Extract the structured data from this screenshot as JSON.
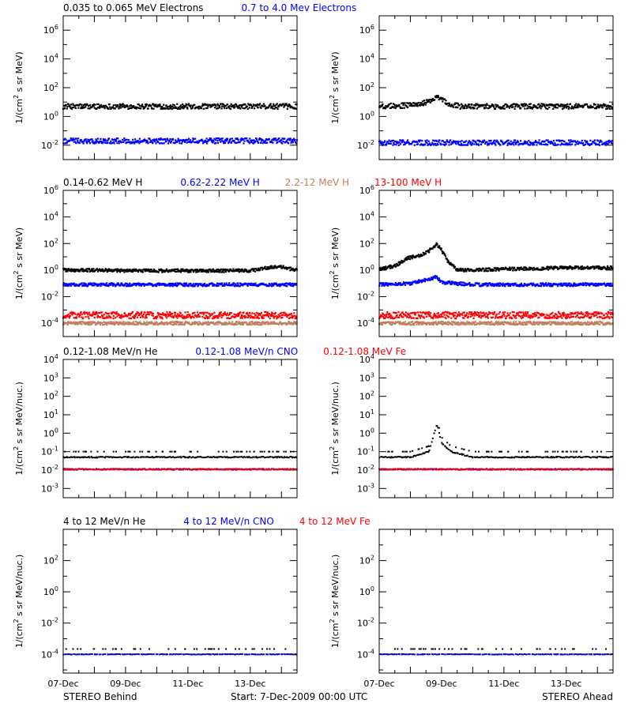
{
  "figure": {
    "footer_left": "STEREO Behind",
    "footer_center": "Start:  7-Dec-2009 00:00 UTC",
    "footer_right": "STEREO Ahead",
    "x_ticks": [
      "07-Dec",
      "09-Dec",
      "11-Dec",
      "13-Dec"
    ]
  },
  "rows": [
    {
      "legend": [
        {
          "text": "0.035 to 0.065 MeV Electrons",
          "color": "#000000"
        },
        {
          "text": "0.7 to 4.0 Mev Electrons",
          "color": "#0000ff"
        }
      ],
      "ylabel_main": "1/(cm",
      "ylabel_sup": "2",
      "ylabel_rest": " s sr MeV)",
      "y_log_range": [
        -3,
        7
      ],
      "y_ticks": [
        {
          "m": "10",
          "e": "6"
        },
        {
          "m": "10",
          "e": "4"
        },
        {
          "m": "10",
          "e": "2"
        },
        {
          "m": "10",
          "e": "0"
        },
        {
          "m": "10",
          "e": "-2"
        }
      ]
    },
    {
      "legend": [
        {
          "text": "0.14-0.62 MeV H",
          "color": "#000000"
        },
        {
          "text": "0.62-2.22 MeV H",
          "color": "#0000ff"
        },
        {
          "text": "2.2-12 MeV H",
          "color": "#c08060"
        },
        {
          "text": "13-100 MeV H",
          "color": "#ff0000"
        }
      ],
      "ylabel_main": "1/(cm",
      "ylabel_sup": "2",
      "ylabel_rest": " s sr MeV)",
      "y_log_range": [
        -5,
        6
      ],
      "y_ticks": [
        {
          "m": "10",
          "e": "6"
        },
        {
          "m": "10",
          "e": "4"
        },
        {
          "m": "10",
          "e": "2"
        },
        {
          "m": "10",
          "e": "0"
        },
        {
          "m": "10",
          "e": "-2"
        },
        {
          "m": "10",
          "e": "-4"
        }
      ]
    },
    {
      "legend": [
        {
          "text": "0.12-1.08 MeV/n He",
          "color": "#000000"
        },
        {
          "text": "0.12-1.08 MeV/n CNO",
          "color": "#0000ff"
        },
        {
          "text": "0.12-1.08 MeV Fe",
          "color": "#ff0000"
        }
      ],
      "ylabel_main": "1/(cm",
      "ylabel_sup": "2",
      "ylabel_rest": " s sr MeV/nuc.)",
      "y_log_range": [
        -3.5,
        4
      ],
      "y_ticks": [
        {
          "m": "10",
          "e": "4"
        },
        {
          "m": "10",
          "e": "3"
        },
        {
          "m": "10",
          "e": "2"
        },
        {
          "m": "10",
          "e": "1"
        },
        {
          "m": "10",
          "e": "0"
        },
        {
          "m": "10",
          "e": "-1"
        },
        {
          "m": "10",
          "e": "-2"
        },
        {
          "m": "10",
          "e": "-3"
        }
      ]
    },
    {
      "legend": [
        {
          "text": "4 to 12 MeV/n He",
          "color": "#000000"
        },
        {
          "text": "4 to 12 MeV/n CNO",
          "color": "#0000ff"
        },
        {
          "text": "4 to 12 MeV Fe",
          "color": "#ff0000"
        }
      ],
      "ylabel_main": "1/(cm",
      "ylabel_sup": "2",
      "ylabel_rest": " s sr MeV/nuc.)",
      "y_log_range": [
        -5.2,
        4
      ],
      "y_ticks": [
        {
          "m": "10",
          "e": "2"
        },
        {
          "m": "10",
          "e": "0"
        },
        {
          "m": "10",
          "e": "-2"
        },
        {
          "m": "10",
          "e": "-4"
        }
      ]
    }
  ],
  "chart_data": [
    {
      "type": "scatter",
      "panel": "electrons-behind",
      "y_scale": "log",
      "x_range_days": [
        0,
        7.5
      ],
      "series": [
        {
          "color": "#000000",
          "x": [
            0,
            1,
            2,
            3,
            4,
            5,
            6,
            7.5
          ],
          "y": [
            5,
            5,
            5,
            5,
            5,
            5,
            5,
            5
          ]
        },
        {
          "color": "#0000ff",
          "x": [
            0,
            1,
            2,
            3,
            4,
            5,
            6,
            7.5
          ],
          "y": [
            0.02,
            0.02,
            0.02,
            0.02,
            0.02,
            0.02,
            0.02,
            0.02
          ]
        }
      ]
    },
    {
      "type": "scatter",
      "panel": "electrons-ahead",
      "y_scale": "log",
      "x_range_days": [
        0,
        7.5
      ],
      "series": [
        {
          "color": "#000000",
          "x": [
            0,
            1,
            1.5,
            1.85,
            2.0,
            2.2,
            2.6,
            3,
            4,
            5,
            6,
            7.5
          ],
          "y": [
            5,
            6,
            9,
            20,
            15,
            8,
            5,
            5,
            5,
            5,
            5,
            5
          ]
        },
        {
          "color": "#0000ff",
          "x": [
            0,
            1,
            2,
            3,
            4,
            5,
            6,
            7.5
          ],
          "y": [
            0.015,
            0.015,
            0.015,
            0.015,
            0.015,
            0.015,
            0.015,
            0.015
          ]
        }
      ]
    },
    {
      "type": "scatter",
      "panel": "protons-behind",
      "y_scale": "log",
      "x_range_days": [
        0,
        7.5
      ],
      "series": [
        {
          "color": "#000000",
          "x": [
            0,
            1,
            2,
            3,
            4,
            5,
            6,
            6.9,
            7.1,
            7.5
          ],
          "y": [
            1,
            1,
            0.9,
            0.9,
            0.9,
            0.9,
            0.9,
            2,
            1.5,
            1
          ]
        },
        {
          "color": "#0000ff",
          "x": [
            0,
            1,
            2,
            3,
            4,
            5,
            6,
            7.5
          ],
          "y": [
            0.08,
            0.08,
            0.08,
            0.08,
            0.08,
            0.08,
            0.08,
            0.08
          ]
        },
        {
          "color": "#c08060",
          "x": [
            0,
            1,
            2,
            3,
            4,
            5,
            6,
            7.5
          ],
          "y": [
            0.0001,
            0.0001,
            0.0001,
            0.0001,
            0.0001,
            0.0001,
            0.0001,
            0.0001
          ]
        },
        {
          "color": "#ff0000",
          "x": [
            0,
            1,
            2,
            3,
            4,
            5,
            6,
            7.5
          ],
          "y": [
            0.0004,
            0.0004,
            0.0004,
            0.0004,
            0.0004,
            0.0004,
            0.0004,
            0.0004
          ]
        }
      ]
    },
    {
      "type": "scatter",
      "panel": "protons-ahead",
      "y_scale": "log",
      "x_range_days": [
        0,
        7.5
      ],
      "series": [
        {
          "color": "#000000",
          "x": [
            0,
            0.5,
            0.9,
            1.3,
            1.7,
            1.85,
            2.0,
            2.2,
            2.5,
            3,
            4,
            5,
            6,
            7.5
          ],
          "y": [
            1.2,
            2,
            8,
            12,
            40,
            100,
            30,
            5,
            1,
            1,
            1.2,
            1.3,
            1.5,
            1.5
          ]
        },
        {
          "color": "#0000ff",
          "x": [
            0,
            1,
            1.85,
            2,
            3,
            4,
            5,
            6,
            7.5
          ],
          "y": [
            0.08,
            0.1,
            0.3,
            0.12,
            0.08,
            0.08,
            0.08,
            0.08,
            0.08
          ]
        },
        {
          "color": "#c08060",
          "x": [
            0,
            1,
            2,
            3,
            4,
            5,
            6,
            7.5
          ],
          "y": [
            0.0001,
            0.0001,
            0.0001,
            0.0001,
            0.0001,
            0.0001,
            0.0001,
            0.0001
          ]
        },
        {
          "color": "#ff0000",
          "x": [
            0,
            1,
            2,
            3,
            4,
            5,
            6,
            7.5
          ],
          "y": [
            0.0004,
            0.0004,
            0.0004,
            0.0004,
            0.0004,
            0.0004,
            0.0004,
            0.0004
          ]
        }
      ]
    },
    {
      "type": "scatter",
      "panel": "low-energy-ions-behind",
      "y_scale": "log",
      "x_range_days": [
        0,
        7.5
      ],
      "series": [
        {
          "color": "#000000",
          "x": [
            0,
            1,
            2,
            3,
            4,
            5,
            6,
            7.5
          ],
          "y": [
            0.05,
            0.05,
            0.05,
            0.05,
            0.05,
            0.05,
            0.05,
            0.05
          ]
        },
        {
          "color": "#0000ff",
          "x": [
            0,
            1,
            2,
            3,
            4,
            5,
            6,
            7.5
          ],
          "y": [
            0.011,
            0.011,
            0.011,
            0.011,
            0.011,
            0.011,
            0.011,
            0.011
          ]
        },
        {
          "color": "#ff0000",
          "x": [
            0,
            1,
            2,
            3,
            4,
            5,
            6,
            7.5
          ],
          "y": [
            0.011,
            0.011,
            0.011,
            0.011,
            0.011,
            0.011,
            0.011,
            0.011
          ]
        }
      ]
    },
    {
      "type": "scatter",
      "panel": "low-energy-ions-ahead",
      "y_scale": "log",
      "x_range_days": [
        0,
        7.5
      ],
      "series": [
        {
          "color": "#000000",
          "x": [
            0,
            1,
            1.6,
            1.85,
            2.0,
            2.3,
            3,
            4,
            5,
            6,
            7.5
          ],
          "y": [
            0.05,
            0.05,
            0.1,
            3,
            0.3,
            0.1,
            0.05,
            0.05,
            0.05,
            0.05,
            0.05
          ]
        },
        {
          "color": "#0000ff",
          "x": [
            0,
            1,
            2,
            3,
            4,
            5,
            6,
            7.5
          ],
          "y": [
            0.011,
            0.011,
            0.011,
            0.011,
            0.011,
            0.011,
            0.011,
            0.011
          ]
        },
        {
          "color": "#ff0000",
          "x": [
            0,
            1,
            2,
            3,
            4,
            5,
            6,
            7.5
          ],
          "y": [
            0.011,
            0.011,
            0.011,
            0.011,
            0.011,
            0.011,
            0.011,
            0.011
          ]
        }
      ]
    },
    {
      "type": "scatter",
      "panel": "high-energy-ions-behind",
      "y_scale": "log",
      "x_range_days": [
        0,
        7.5
      ],
      "series": [
        {
          "color": "#000000",
          "x": [
            0,
            1,
            2,
            3,
            4,
            5,
            6,
            7.5
          ],
          "y": [
            0.0001,
            0.0001,
            0.0001,
            0.0001,
            0.0001,
            0.0001,
            0.0001,
            0.0001
          ]
        },
        {
          "color": "#0000ff",
          "x": [
            0,
            1,
            2,
            3,
            4,
            5,
            6,
            7.5
          ],
          "y": [
            0.0001,
            0.0001,
            0.0001,
            0.0001,
            0.0001,
            0.0001,
            0.0001,
            0.0001
          ]
        }
      ]
    },
    {
      "type": "scatter",
      "panel": "high-energy-ions-ahead",
      "y_scale": "log",
      "x_range_days": [
        0,
        7.5
      ],
      "series": [
        {
          "color": "#000000",
          "x": [
            0,
            1,
            2,
            3,
            4,
            5,
            6,
            7.5
          ],
          "y": [
            0.0001,
            0.0001,
            0.0001,
            0.0001,
            0.0001,
            0.0001,
            0.0001,
            0.0001
          ]
        },
        {
          "color": "#0000ff",
          "x": [
            0,
            1,
            2,
            3,
            4,
            5,
            6,
            7.5
          ],
          "y": [
            0.0001,
            0.0001,
            0.0001,
            0.0001,
            0.0001,
            0.0001,
            0.0001,
            0.0001
          ]
        }
      ]
    }
  ]
}
